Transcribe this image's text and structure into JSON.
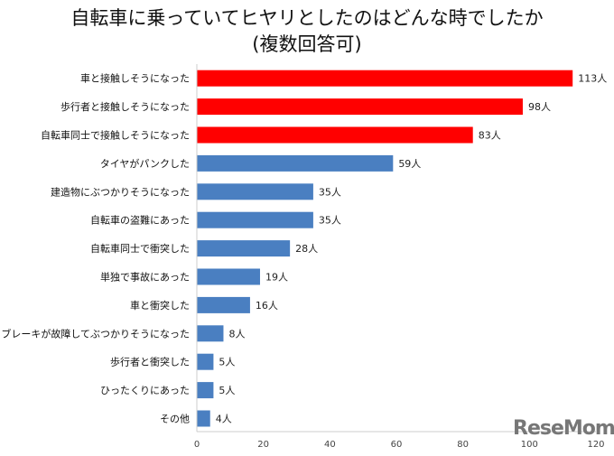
{
  "chart_data": {
    "type": "bar",
    "orientation": "horizontal",
    "title": "自転車に乗っていてヒヤリとしたのはどんな時でしたか",
    "subtitle": "(複数回答可)",
    "categories": [
      "車と接触しそうになった",
      "歩行者と接触しそうになった",
      "自転車同士で接触しそうになった",
      "タイヤがパンクした",
      "建造物にぶつかりそうになった",
      "自転車の盗難にあった",
      "自転車同士で衝突した",
      "単独で事故にあった",
      "車と衝突した",
      "ブレーキが故障してぶつかりそうになった",
      "歩行者と衝突した",
      "ひったくりにあった",
      "その他"
    ],
    "values": [
      113,
      98,
      83,
      59,
      35,
      35,
      28,
      19,
      16,
      8,
      5,
      5,
      4
    ],
    "value_unit": "人",
    "highlight_count": 3,
    "colors": {
      "highlight": "#ff0000",
      "default": "#4a7fc1"
    },
    "xlim": [
      0,
      120
    ],
    "xticks": [
      0,
      20,
      40,
      60,
      80,
      100,
      120
    ],
    "grid": false,
    "legend": "none"
  },
  "watermark": "ReseMom"
}
